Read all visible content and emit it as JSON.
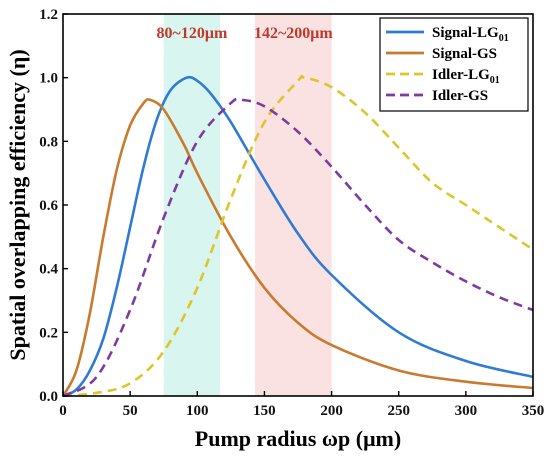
{
  "chart_data": {
    "type": "line",
    "xlabel": "Pump radius ωp (μm)",
    "ylabel": "Spatial overlapping efficiency (η)",
    "xlim": [
      0,
      350
    ],
    "ylim": [
      0,
      1.2
    ],
    "x_ticks": [
      0,
      50,
      100,
      150,
      200,
      250,
      300,
      350
    ],
    "y_ticks": [
      0.0,
      0.2,
      0.4,
      0.6,
      0.8,
      1.0,
      1.2
    ],
    "grid": false,
    "legend_position": "top-right",
    "bands": [
      {
        "label": "80~120μm",
        "range": [
          75,
          117
        ],
        "color": "#d9f5ef",
        "label_color": "#c0392b"
      },
      {
        "label": "142~200μm",
        "range": [
          143,
          200
        ],
        "color": "#fbe2e2",
        "label_color": "#c0392b"
      }
    ],
    "series": [
      {
        "name": "Signal-LG01",
        "legend_base": "Signal-LG",
        "legend_sub": "01",
        "color": "#2f7bd3",
        "dash": "solid",
        "x": [
          0,
          10,
          20,
          30,
          40,
          50,
          60,
          70,
          80,
          92,
          100,
          110,
          125,
          150,
          175,
          200,
          250,
          300,
          350
        ],
        "y": [
          0.0,
          0.02,
          0.08,
          0.18,
          0.34,
          0.53,
          0.72,
          0.87,
          0.96,
          1.0,
          0.99,
          0.95,
          0.86,
          0.68,
          0.51,
          0.38,
          0.2,
          0.11,
          0.06
        ]
      },
      {
        "name": "Signal-GS",
        "legend_base": "Signal-GS",
        "legend_sub": "",
        "color": "#c97a2e",
        "dash": "solid",
        "x": [
          0,
          10,
          20,
          30,
          40,
          50,
          60,
          65,
          75,
          90,
          100,
          125,
          150,
          175,
          200,
          250,
          300,
          350
        ],
        "y": [
          0.0,
          0.08,
          0.26,
          0.5,
          0.71,
          0.85,
          0.92,
          0.93,
          0.9,
          0.79,
          0.7,
          0.5,
          0.34,
          0.23,
          0.16,
          0.08,
          0.045,
          0.025
        ]
      },
      {
        "name": "Idler-LG01",
        "legend_base": "Idler-LG",
        "legend_sub": "01",
        "color": "#ddc52b",
        "dash": "dashed",
        "x": [
          0,
          25,
          50,
          75,
          100,
          125,
          150,
          175,
          180,
          200,
          225,
          250,
          275,
          300,
          325,
          350
        ],
        "y": [
          0.0,
          0.01,
          0.04,
          0.14,
          0.34,
          0.62,
          0.86,
          0.99,
          1.0,
          0.97,
          0.89,
          0.78,
          0.67,
          0.6,
          0.53,
          0.46
        ]
      },
      {
        "name": "Idler-GS",
        "legend_base": "Idler-GS",
        "legend_sub": "",
        "color": "#7f3aa0",
        "dash": "dashed",
        "x": [
          0,
          25,
          50,
          75,
          100,
          125,
          133,
          150,
          175,
          200,
          225,
          250,
          275,
          300,
          325,
          350
        ],
        "y": [
          0.0,
          0.06,
          0.27,
          0.56,
          0.8,
          0.92,
          0.93,
          0.91,
          0.83,
          0.72,
          0.6,
          0.49,
          0.42,
          0.36,
          0.31,
          0.27
        ]
      }
    ]
  }
}
